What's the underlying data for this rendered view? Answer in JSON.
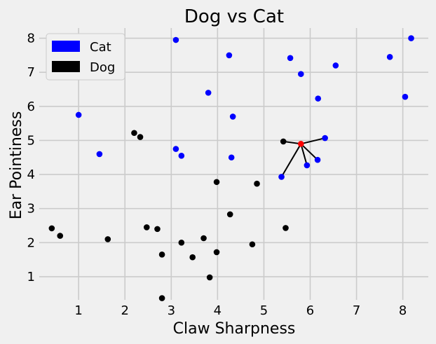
{
  "chart_data": {
    "type": "scatter",
    "title": "Dog vs Cat",
    "xlabel": "Claw Sharpness",
    "ylabel": "Ear Pointiness",
    "xlim": [
      0.15,
      8.55
    ],
    "ylim": [
      0.32,
      8.3
    ],
    "xticks": [
      1,
      2,
      3,
      4,
      5,
      6,
      7,
      8
    ],
    "yticks": [
      1,
      2,
      3,
      4,
      5,
      6,
      7,
      8
    ],
    "grid": true,
    "legend": {
      "placement": "top-left",
      "entries": [
        {
          "label": "Cat",
          "color": "#0000ff"
        },
        {
          "label": "Dog",
          "color": "#000000"
        }
      ]
    },
    "series": [
      {
        "name": "Cat",
        "color": "#0000ff",
        "points": [
          [
            3.1,
            7.95
          ],
          [
            4.25,
            7.5
          ],
          [
            5.57,
            7.42
          ],
          [
            5.8,
            6.95
          ],
          [
            6.55,
            7.2
          ],
          [
            7.72,
            7.45
          ],
          [
            8.18,
            8.0
          ],
          [
            3.8,
            6.4
          ],
          [
            1.0,
            5.75
          ],
          [
            4.33,
            5.7
          ],
          [
            6.17,
            6.23
          ],
          [
            8.05,
            6.28
          ],
          [
            1.45,
            4.6
          ],
          [
            3.1,
            4.75
          ],
          [
            3.22,
            4.55
          ],
          [
            4.3,
            4.5
          ],
          [
            6.32,
            5.07
          ],
          [
            6.16,
            4.43
          ],
          [
            5.93,
            4.27
          ],
          [
            5.38,
            3.93
          ]
        ]
      },
      {
        "name": "Dog",
        "color": "#000000",
        "points": [
          [
            2.2,
            5.22
          ],
          [
            2.33,
            5.1
          ],
          [
            5.42,
            4.97
          ],
          [
            3.98,
            3.78
          ],
          [
            4.85,
            3.73
          ],
          [
            4.27,
            2.83
          ],
          [
            0.42,
            2.42
          ],
          [
            0.6,
            2.2
          ],
          [
            1.63,
            2.1
          ],
          [
            2.47,
            2.45
          ],
          [
            2.7,
            2.4
          ],
          [
            5.47,
            2.43
          ],
          [
            3.7,
            2.13
          ],
          [
            3.22,
            2.0
          ],
          [
            4.75,
            1.95
          ],
          [
            2.8,
            1.65
          ],
          [
            3.46,
            1.57
          ],
          [
            3.98,
            1.72
          ],
          [
            3.83,
            0.98
          ],
          [
            2.8,
            0.37
          ]
        ]
      }
    ],
    "query_point": {
      "name": "Query",
      "color": "#ff0000",
      "x": 5.8,
      "y": 4.9
    },
    "neighbors": [
      [
        5.42,
        4.97
      ],
      [
        6.32,
        5.07
      ],
      [
        6.16,
        4.43
      ],
      [
        5.93,
        4.27
      ],
      [
        5.38,
        3.93
      ]
    ]
  }
}
